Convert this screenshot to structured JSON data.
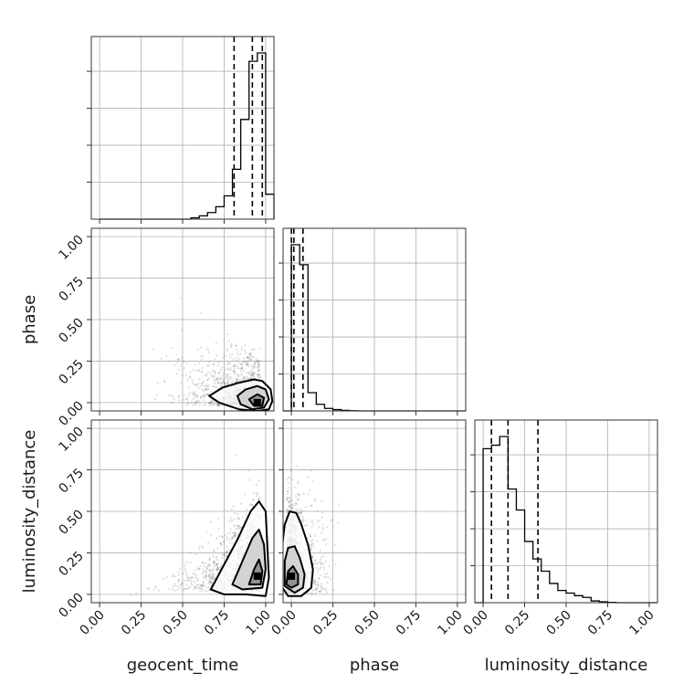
{
  "chart_data": {
    "type": "corner",
    "title": "",
    "parameters": [
      "geocent_time",
      "phase",
      "luminosity_distance"
    ],
    "ticks": [
      0.0,
      0.25,
      0.5,
      0.75,
      1.0
    ],
    "tick_labels": [
      "0.00",
      "0.25",
      "0.50",
      "0.75",
      "1.00"
    ],
    "range": [
      -0.05,
      1.05
    ],
    "grid": true,
    "marginals": [
      {
        "parameter": "geocent_time",
        "bin_width": 0.05,
        "bin_starts": [
          0.0,
          0.05,
          0.1,
          0.15,
          0.2,
          0.25,
          0.3,
          0.35,
          0.4,
          0.45,
          0.5,
          0.55,
          0.6,
          0.65,
          0.7,
          0.75,
          0.8,
          0.85,
          0.9,
          0.95,
          1.0
        ],
        "density": [
          0,
          0,
          0,
          0,
          0,
          0,
          0,
          0,
          0,
          0,
          0,
          0.008,
          0.02,
          0.04,
          0.075,
          0.14,
          0.3,
          0.6,
          0.95,
          1.0,
          0.15
        ],
        "quantiles": [
          0.81,
          0.92,
          0.98
        ]
      },
      {
        "parameter": "phase",
        "bin_width": 0.05,
        "bin_starts": [
          -0.05,
          0.0,
          0.05,
          0.1,
          0.15,
          0.2,
          0.25,
          0.3,
          0.35,
          0.4,
          0.45,
          0.5,
          0.55,
          0.6,
          0.65,
          0.7,
          0.75,
          0.8,
          0.85,
          0.9,
          0.95,
          1.0
        ],
        "density": [
          0,
          1.0,
          0.88,
          0.11,
          0.04,
          0.015,
          0.008,
          0.003,
          0.001,
          0,
          0,
          0,
          0,
          0,
          0,
          0,
          0,
          0,
          0,
          0,
          0,
          0
        ],
        "quantiles": [
          0.0,
          0.015,
          0.07
        ]
      },
      {
        "parameter": "luminosity_distance",
        "bin_width": 0.05,
        "bin_starts": [
          -0.05,
          0.0,
          0.05,
          0.1,
          0.15,
          0.2,
          0.25,
          0.3,
          0.35,
          0.4,
          0.45,
          0.5,
          0.55,
          0.6,
          0.65,
          0.7,
          0.75,
          0.8,
          0.85,
          0.9,
          0.95,
          1.0
        ],
        "density": [
          0,
          0.88,
          0.9,
          0.95,
          0.65,
          0.53,
          0.35,
          0.25,
          0.18,
          0.11,
          0.07,
          0.055,
          0.04,
          0.03,
          0.01,
          0.005,
          0.002,
          0,
          0,
          0,
          0,
          0
        ],
        "quantiles": [
          0.05,
          0.15,
          0.33
        ]
      }
    ],
    "joints": [
      {
        "x": "geocent_time",
        "y": "phase",
        "peak": [
          0.95,
          0.0
        ],
        "contours": [
          [
            [
              0.66,
              0.04
            ],
            [
              0.74,
              0.09
            ],
            [
              0.84,
              0.12
            ],
            [
              0.93,
              0.14
            ],
            [
              0.98,
              0.13
            ],
            [
              1.03,
              0.08
            ],
            [
              1.04,
              0.01
            ],
            [
              1.02,
              -0.04
            ],
            [
              0.95,
              -0.05
            ],
            [
              0.84,
              -0.04
            ],
            [
              0.72,
              0.0
            ]
          ],
          [
            [
              0.83,
              0.04
            ],
            [
              0.88,
              0.08
            ],
            [
              0.95,
              0.1
            ],
            [
              1.0,
              0.08
            ],
            [
              1.02,
              0.02
            ],
            [
              0.99,
              -0.03
            ],
            [
              0.92,
              -0.04
            ],
            [
              0.85,
              -0.01
            ]
          ],
          [
            [
              0.9,
              0.02
            ],
            [
              0.95,
              0.05
            ],
            [
              0.99,
              0.03
            ],
            [
              0.98,
              -0.02
            ],
            [
              0.93,
              -0.02
            ]
          ]
        ]
      },
      {
        "x": "geocent_time",
        "y": "luminosity_distance",
        "peak": [
          0.95,
          0.11
        ],
        "contours": [
          [
            [
              0.67,
              0.03
            ],
            [
              0.75,
              0.18
            ],
            [
              0.83,
              0.33
            ],
            [
              0.91,
              0.5
            ],
            [
              0.96,
              0.56
            ],
            [
              1.0,
              0.5
            ],
            [
              1.01,
              0.3
            ],
            [
              1.02,
              0.1
            ],
            [
              1.0,
              -0.01
            ],
            [
              0.88,
              0.0
            ],
            [
              0.75,
              0.0
            ]
          ],
          [
            [
              0.8,
              0.06
            ],
            [
              0.86,
              0.2
            ],
            [
              0.92,
              0.34
            ],
            [
              0.96,
              0.39
            ],
            [
              0.99,
              0.3
            ],
            [
              1.0,
              0.15
            ],
            [
              0.98,
              0.04
            ],
            [
              0.86,
              0.03
            ]
          ],
          [
            [
              0.9,
              0.06
            ],
            [
              0.93,
              0.15
            ],
            [
              0.96,
              0.21
            ],
            [
              0.98,
              0.14
            ],
            [
              0.97,
              0.06
            ]
          ]
        ]
      },
      {
        "x": "phase",
        "y": "luminosity_distance",
        "peak": [
          0.0,
          0.11
        ],
        "contours": [
          [
            [
              -0.06,
              0.05
            ],
            [
              -0.06,
              0.25
            ],
            [
              -0.04,
              0.42
            ],
            [
              -0.01,
              0.5
            ],
            [
              0.03,
              0.49
            ],
            [
              0.06,
              0.42
            ],
            [
              0.1,
              0.3
            ],
            [
              0.13,
              0.15
            ],
            [
              0.12,
              0.04
            ],
            [
              0.06,
              -0.01
            ],
            [
              -0.02,
              -0.01
            ]
          ],
          [
            [
              -0.04,
              0.05
            ],
            [
              -0.04,
              0.2
            ],
            [
              -0.02,
              0.28
            ],
            [
              0.02,
              0.29
            ],
            [
              0.05,
              0.22
            ],
            [
              0.08,
              0.12
            ],
            [
              0.07,
              0.04
            ],
            [
              0.02,
              0.01
            ]
          ],
          [
            [
              -0.03,
              0.06
            ],
            [
              -0.02,
              0.14
            ],
            [
              0.01,
              0.17
            ],
            [
              0.04,
              0.12
            ],
            [
              0.04,
              0.06
            ],
            [
              0.0,
              0.04
            ]
          ]
        ]
      }
    ]
  }
}
